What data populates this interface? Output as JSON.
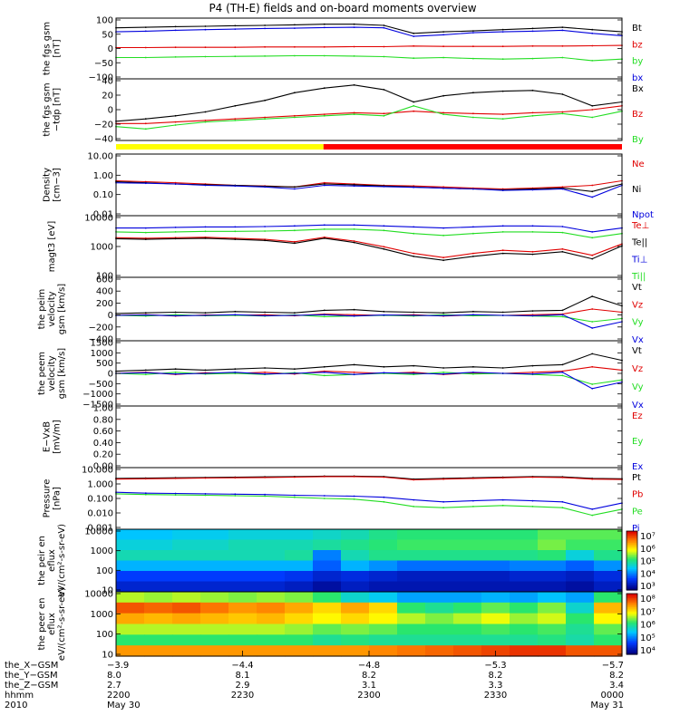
{
  "title": "P4 (TH-E) fields and on-board moments overview",
  "colors": {
    "black": "#000000",
    "red": "#e00000",
    "green": "#22dd22",
    "blue": "#0000dd",
    "bar_yellow": "#ffff00",
    "bar_red": "#ff0000"
  },
  "chart_data": [
    {
      "type": "line",
      "ylabel": "the fgs gsm [nT]",
      "scale": "linear",
      "yticks": [
        "100",
        "50",
        "0",
        "−50",
        "−100"
      ],
      "ylim": [
        -100,
        100
      ],
      "legend": [
        "Bt",
        "bz",
        "by",
        "bx"
      ],
      "series": [
        {
          "name": "Bt",
          "color": "black",
          "values": [
            68,
            70,
            72,
            73,
            75,
            76,
            78,
            80,
            80,
            76,
            50,
            55,
            58,
            62,
            66,
            70,
            62,
            55
          ]
        },
        {
          "name": "bz",
          "color": "red",
          "values": [
            3,
            3,
            4,
            4,
            4,
            5,
            5,
            5,
            6,
            6,
            8,
            7,
            7,
            7,
            8,
            8,
            9,
            10
          ]
        },
        {
          "name": "by",
          "color": "green",
          "values": [
            -30,
            -30,
            -28,
            -27,
            -26,
            -25,
            -24,
            -24,
            -25,
            -27,
            -32,
            -30,
            -33,
            -35,
            -33,
            -30,
            -40,
            -35
          ]
        },
        {
          "name": "bx",
          "color": "blue",
          "values": [
            55,
            57,
            60,
            62,
            64,
            66,
            67,
            69,
            70,
            68,
            40,
            45,
            52,
            55,
            57,
            60,
            50,
            42
          ]
        }
      ]
    },
    {
      "type": "line",
      "ylabel": "the fgs gsm −tdp [nT]",
      "scale": "linear",
      "yticks": [
        "40",
        "20",
        "0",
        "−20",
        "−40"
      ],
      "ylim": [
        -40,
        40
      ],
      "legend": [
        "Bx",
        "Bz",
        "By"
      ],
      "series": [
        {
          "name": "Bx",
          "color": "black",
          "values": [
            -15,
            -12,
            -8,
            -3,
            5,
            12,
            22,
            28,
            32,
            26,
            10,
            18,
            22,
            24,
            25,
            20,
            5,
            10
          ]
        },
        {
          "name": "Bz",
          "color": "red",
          "values": [
            -18,
            -18,
            -16,
            -14,
            -12,
            -10,
            -8,
            -6,
            -4,
            -5,
            -2,
            -4,
            -5,
            -6,
            -4,
            -3,
            0,
            5
          ]
        },
        {
          "name": "By",
          "color": "green",
          "values": [
            -22,
            -25,
            -20,
            -16,
            -14,
            -12,
            -10,
            -8,
            -6,
            -8,
            5,
            -6,
            -10,
            -12,
            -8,
            -5,
            -10,
            -2
          ]
        }
      ]
    },
    {
      "type": "line",
      "ylabel": "Density [cm−3]",
      "scale": "log",
      "yticks": [
        "10.00",
        "1.00",
        "0.10",
        "0.01"
      ],
      "ylim": [
        0.01,
        10
      ],
      "legend": [
        "Ne",
        "Ni",
        "Npot"
      ],
      "series": [
        {
          "name": "Ne",
          "color": "red",
          "values": [
            0.5,
            0.45,
            0.4,
            0.35,
            0.3,
            0.28,
            0.25,
            0.4,
            0.35,
            0.3,
            0.28,
            0.25,
            0.22,
            0.2,
            0.22,
            0.25,
            0.3,
            0.5
          ]
        },
        {
          "name": "Ni",
          "color": "black",
          "values": [
            0.45,
            0.4,
            0.35,
            0.32,
            0.3,
            0.27,
            0.25,
            0.35,
            0.32,
            0.28,
            0.25,
            0.22,
            0.2,
            0.18,
            0.2,
            0.22,
            0.15,
            0.35
          ]
        },
        {
          "name": "Npot",
          "color": "blue",
          "values": [
            0.4,
            0.38,
            0.35,
            0.3,
            0.28,
            0.25,
            0.2,
            0.3,
            0.28,
            0.26,
            0.24,
            0.22,
            0.2,
            0.17,
            0.18,
            0.2,
            0.08,
            0.3
          ]
        }
      ]
    },
    {
      "type": "line",
      "ylabel": "magt3 [eV]",
      "scale": "log",
      "yticks": [
        "10000",
        "1000",
        "100"
      ],
      "ylim": [
        100,
        15000
      ],
      "legend": [
        "Te⊥",
        "Te||",
        "Ti⊥",
        "Ti||"
      ],
      "series": [
        {
          "name": "Te⊥",
          "color": "red",
          "values": [
            2500,
            2400,
            2500,
            2600,
            2400,
            2200,
            1800,
            2600,
            1900,
            1200,
            700,
            500,
            700,
            900,
            800,
            1000,
            600,
            1500
          ]
        },
        {
          "name": "Te||",
          "color": "black",
          "values": [
            2300,
            2200,
            2300,
            2400,
            2200,
            2000,
            1600,
            2400,
            1700,
            1000,
            550,
            400,
            550,
            700,
            650,
            800,
            450,
            1300
          ]
        },
        {
          "name": "Ti⊥",
          "color": "blue",
          "values": [
            5500,
            5500,
            5800,
            6000,
            6000,
            6200,
            6500,
            7000,
            7000,
            6500,
            6000,
            5500,
            6000,
            6500,
            6500,
            6200,
            4000,
            5500
          ]
        },
        {
          "name": "Ti||",
          "color": "green",
          "values": [
            4000,
            3800,
            4000,
            4200,
            4200,
            4300,
            4500,
            5000,
            5000,
            4500,
            3500,
            3000,
            3500,
            4000,
            4000,
            3800,
            2500,
            3500
          ]
        }
      ]
    },
    {
      "type": "line",
      "ylabel": "the peim velocity gsm [km/s]",
      "scale": "linear",
      "yticks": [
        "600",
        "400",
        "200",
        "0",
        "−200",
        "−400"
      ],
      "ylim": [
        -400,
        600
      ],
      "legend": [
        "Vt",
        "Vz",
        "Vy",
        "Vx"
      ],
      "series": [
        {
          "name": "Vt",
          "color": "black",
          "values": [
            30,
            40,
            50,
            40,
            60,
            50,
            40,
            80,
            90,
            60,
            50,
            40,
            60,
            50,
            70,
            80,
            300,
            150
          ]
        },
        {
          "name": "Vz",
          "color": "red",
          "values": [
            0,
            10,
            -10,
            5,
            0,
            10,
            -5,
            20,
            10,
            0,
            10,
            -10,
            5,
            0,
            10,
            20,
            100,
            50
          ]
        },
        {
          "name": "Vy",
          "color": "green",
          "values": [
            0,
            -10,
            10,
            -5,
            0,
            -10,
            5,
            -20,
            -10,
            0,
            -10,
            10,
            -5,
            0,
            -10,
            -20,
            -100,
            -50
          ]
        },
        {
          "name": "Vx",
          "color": "blue",
          "values": [
            0,
            5,
            -5,
            0,
            10,
            -5,
            0,
            10,
            -10,
            5,
            0,
            -5,
            10,
            0,
            -5,
            10,
            -200,
            -100
          ]
        }
      ]
    },
    {
      "type": "line",
      "ylabel": "the peem velocity gsm [km/s]",
      "scale": "linear",
      "yticks": [
        "1500",
        "1000",
        "500",
        "0",
        "−500",
        "−1000",
        "−1500"
      ],
      "ylim": [
        -1500,
        1500
      ],
      "legend": [
        "Vt",
        "Vz",
        "Vy",
        "Vx"
      ],
      "series": [
        {
          "name": "Vt",
          "color": "black",
          "values": [
            100,
            150,
            200,
            150,
            200,
            250,
            200,
            300,
            400,
            300,
            350,
            250,
            300,
            250,
            350,
            400,
            900,
            600
          ]
        },
        {
          "name": "Vz",
          "color": "red",
          "values": [
            0,
            50,
            -50,
            30,
            0,
            50,
            -30,
            100,
            50,
            0,
            50,
            -50,
            30,
            0,
            50,
            100,
            300,
            150
          ]
        },
        {
          "name": "Vy",
          "color": "green",
          "values": [
            0,
            -50,
            50,
            -30,
            0,
            -50,
            30,
            -100,
            -50,
            0,
            -50,
            50,
            -30,
            0,
            -50,
            -100,
            -500,
            -300
          ]
        },
        {
          "name": "Vx",
          "color": "blue",
          "values": [
            0,
            30,
            -30,
            0,
            50,
            -30,
            0,
            50,
            -50,
            30,
            0,
            -30,
            50,
            0,
            -30,
            50,
            -700,
            -400
          ]
        }
      ]
    },
    {
      "type": "line",
      "ylabel": "E−VxB [mV/m]",
      "scale": "linear",
      "yticks": [
        "1.00",
        "0.80",
        "0.60",
        "0.40",
        "0.20",
        "0.00"
      ],
      "ylim": [
        0,
        1
      ],
      "legend": [
        "Ez",
        "Ey",
        "Ex"
      ],
      "series": []
    },
    {
      "type": "line",
      "ylabel": "Pressure [nPa]",
      "scale": "log",
      "yticks": [
        "10.000",
        "1.000",
        "0.100",
        "0.010",
        "0.001"
      ],
      "ylim": [
        0.001,
        10
      ],
      "legend": [
        "Pt",
        "Pb",
        "Pe",
        "Pi"
      ],
      "series": [
        {
          "name": "Pt",
          "color": "black",
          "values": [
            2.0,
            2.1,
            2.2,
            2.3,
            2.4,
            2.5,
            2.6,
            2.8,
            2.8,
            2.6,
            1.8,
            2.0,
            2.2,
            2.4,
            2.6,
            2.5,
            2.0,
            1.9
          ]
        },
        {
          "name": "Pb",
          "color": "red",
          "values": [
            1.8,
            1.9,
            2.0,
            2.1,
            2.2,
            2.3,
            2.4,
            2.6,
            2.6,
            2.4,
            1.6,
            1.8,
            2.0,
            2.2,
            2.4,
            2.3,
            1.8,
            1.7
          ]
        },
        {
          "name": "Pe",
          "color": "green",
          "values": [
            0.2,
            0.18,
            0.17,
            0.16,
            0.15,
            0.14,
            0.12,
            0.1,
            0.09,
            0.06,
            0.03,
            0.025,
            0.03,
            0.035,
            0.03,
            0.025,
            0.008,
            0.02
          ]
        },
        {
          "name": "Pi",
          "color": "blue",
          "values": [
            0.25,
            0.22,
            0.21,
            0.2,
            0.19,
            0.18,
            0.16,
            0.15,
            0.14,
            0.12,
            0.08,
            0.06,
            0.07,
            0.08,
            0.07,
            0.06,
            0.02,
            0.05
          ]
        }
      ]
    },
    {
      "type": "heatmap",
      "ylabel": "the peir en eflux eV/(cm²-s-sr-eV)",
      "yticks": [
        "10000",
        "1000",
        "100",
        "10"
      ],
      "colorbar_ticks": [
        "10⁷",
        "10⁶",
        "10⁵",
        "10⁴",
        "10³"
      ],
      "colorbar_range": [
        3,
        7.5
      ],
      "grid": [
        [
          4.6,
          4.6,
          4.7,
          4.7,
          4.8,
          4.8,
          4.8,
          4.9,
          5.0,
          5.2,
          5.3,
          5.3,
          5.3,
          5.3,
          5.3,
          5.5,
          5.5,
          5.5
        ],
        [
          4.8,
          4.8,
          4.9,
          4.9,
          5.0,
          5.0,
          5.0,
          5.1,
          5.2,
          5.3,
          5.4,
          5.4,
          5.4,
          5.4,
          5.4,
          5.6,
          5.4,
          5.4
        ],
        [
          5.0,
          5.0,
          5.0,
          5.0,
          5.0,
          5.0,
          5.1,
          4.2,
          5.0,
          5.2,
          5.2,
          5.2,
          5.2,
          5.2,
          5.2,
          5.3,
          4.8,
          5.2
        ],
        [
          4.5,
          4.5,
          4.5,
          4.5,
          4.5,
          4.5,
          4.5,
          4.0,
          4.5,
          4.3,
          4.1,
          4.1,
          4.1,
          4.1,
          4.2,
          4.2,
          4.0,
          4.3
        ],
        [
          3.8,
          3.8,
          3.8,
          3.8,
          3.8,
          3.8,
          3.7,
          3.5,
          3.6,
          3.5,
          3.4,
          3.4,
          3.4,
          3.4,
          3.5,
          3.5,
          3.4,
          3.6
        ],
        [
          3.5,
          3.5,
          3.5,
          3.5,
          3.5,
          3.5,
          3.4,
          3.2,
          3.4,
          3.3,
          3.3,
          3.3,
          3.3,
          3.3,
          3.3,
          3.3,
          3.2,
          3.4
        ]
      ]
    },
    {
      "type": "heatmap",
      "ylabel": "the peer en eflux eV/(cm²-s-sr-eV)",
      "yticks": [
        "10000",
        "1000",
        "100",
        "10"
      ],
      "colorbar_ticks": [
        "10⁸",
        "10⁷",
        "10⁶",
        "10⁵",
        "10⁴"
      ],
      "colorbar_range": [
        3.5,
        8.3
      ],
      "grid": [
        [
          6.5,
          6.4,
          6.5,
          6.4,
          6.3,
          6.4,
          6.3,
          6.0,
          5.5,
          5.3,
          5.0,
          5.0,
          5.0,
          5.1,
          5.0,
          5.2,
          5.0,
          6.0
        ],
        [
          7.8,
          7.7,
          7.8,
          7.6,
          7.4,
          7.5,
          7.3,
          7.0,
          7.3,
          7.0,
          6.0,
          5.8,
          6.0,
          6.2,
          6.0,
          6.3,
          5.5,
          7.2
        ],
        [
          7.3,
          7.2,
          7.3,
          7.2,
          7.1,
          7.2,
          7.0,
          6.8,
          7.0,
          6.8,
          6.5,
          6.3,
          6.5,
          6.7,
          6.4,
          6.6,
          6.0,
          6.8
        ],
        [
          6.5,
          6.5,
          6.5,
          6.5,
          6.5,
          6.5,
          6.4,
          6.2,
          6.3,
          6.2,
          6.0,
          6.0,
          6.0,
          6.1,
          6.0,
          6.1,
          5.8,
          6.2
        ],
        [
          6.0,
          6.0,
          6.0,
          6.0,
          6.0,
          6.0,
          6.0,
          5.8,
          5.9,
          5.8,
          5.8,
          5.8,
          5.8,
          5.8,
          5.8,
          5.9,
          5.7,
          6.0
        ],
        [
          7.4,
          7.4,
          7.4,
          7.4,
          7.4,
          7.4,
          7.4,
          7.4,
          7.4,
          7.5,
          7.6,
          7.7,
          7.8,
          7.9,
          8.0,
          8.0,
          7.8,
          7.8
        ]
      ]
    }
  ],
  "top_bar": [
    {
      "color": "bar_yellow",
      "start": 0,
      "end": 0.41
    },
    {
      "color": "bar_red",
      "start": 0.41,
      "end": 1
    }
  ],
  "x_axis": {
    "row_labels": [
      "the_X−GSM",
      "the_Y−GSM",
      "the_Z−GSM",
      "hhmm",
      "2010"
    ],
    "columns": [
      [
        "−3.9",
        "8.0",
        "2.7",
        "2200",
        "May 30"
      ],
      [
        "−4.4",
        "8.1",
        "2.9",
        "2230",
        ""
      ],
      [
        "−4.8",
        "8.2",
        "3.1",
        "2300",
        ""
      ],
      [
        "−5.3",
        "8.2",
        "3.3",
        "2330",
        ""
      ],
      [
        "−5.7",
        "8.2",
        "3.4",
        "0000",
        "May 31"
      ]
    ]
  }
}
